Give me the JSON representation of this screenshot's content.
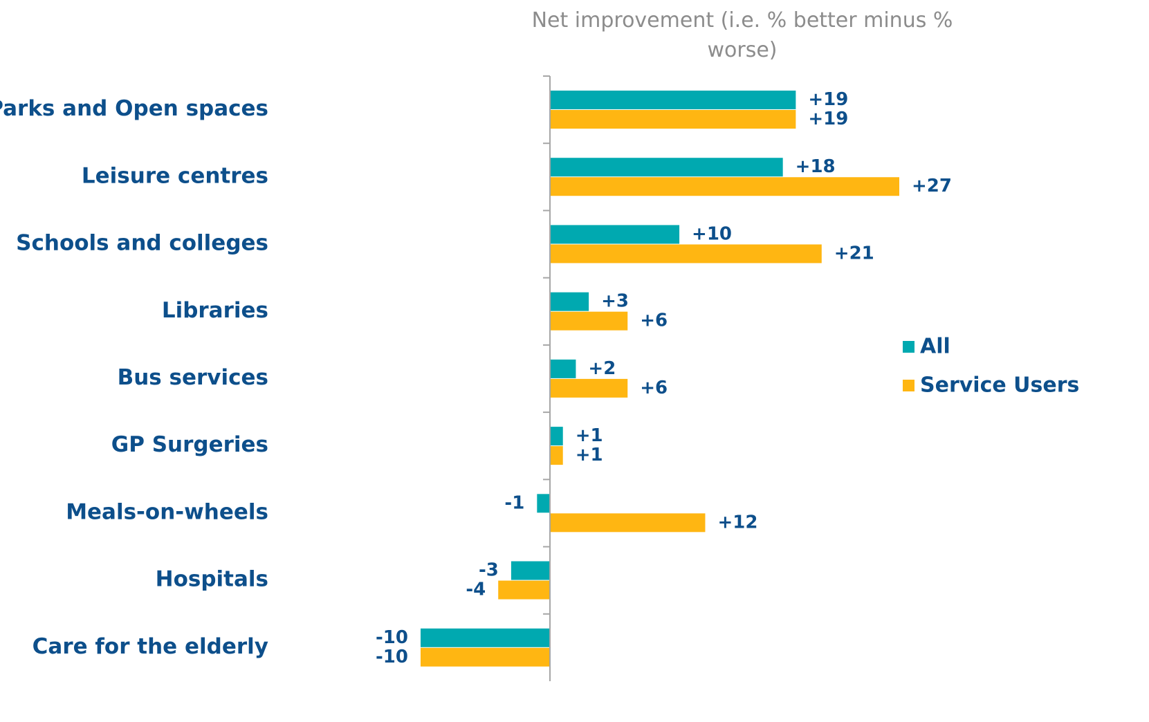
{
  "chart_data": {
    "type": "bar",
    "orientation": "horizontal",
    "title": "Net improvement (i.e. % better minus % worse)",
    "categories": [
      "Parks and Open spaces",
      "Leisure centres",
      "Schools and colleges",
      "Libraries",
      "Bus services",
      "GP Surgeries",
      "Meals-on-wheels",
      "Hospitals",
      "Care for the elderly"
    ],
    "series": [
      {
        "name": "All",
        "color": "#00a9b0",
        "values": [
          19,
          18,
          10,
          3,
          2,
          1,
          -1,
          -3,
          -10
        ],
        "value_labels": [
          "+19",
          "+18",
          "+10",
          "+3",
          "+2",
          "+1",
          "-1",
          "-3",
          "-10"
        ]
      },
      {
        "name": "Service Users",
        "color": "#ffb612",
        "values": [
          19,
          27,
          21,
          6,
          6,
          1,
          12,
          -4,
          -10
        ],
        "value_labels": [
          "+19",
          "+27",
          "+21",
          "+6",
          "+6",
          "+1",
          "+12",
          "-4",
          "-10"
        ]
      }
    ],
    "xlim": [
      -10,
      27
    ],
    "legend": "right"
  }
}
